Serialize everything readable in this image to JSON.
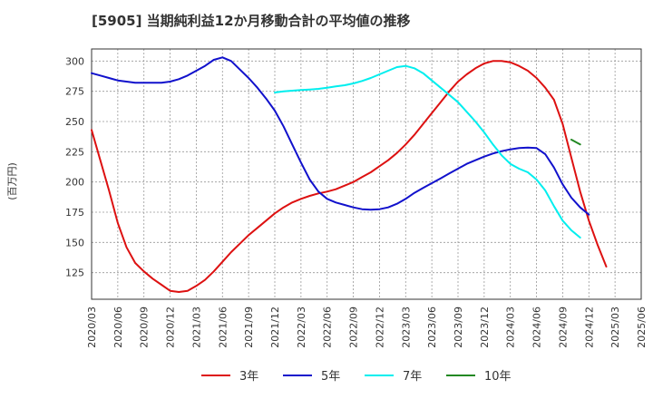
{
  "chart_data": {
    "type": "line",
    "title": "[5905]  当期純利益12か月移動合計の平均値の推移",
    "ylabel": "(百万円)",
    "xlabel": "",
    "ylim": [
      103,
      310
    ],
    "yticks": [
      125,
      150,
      175,
      200,
      225,
      250,
      275,
      300
    ],
    "x_categories": [
      "2020/03",
      "2020/06",
      "2020/09",
      "2020/12",
      "2021/03",
      "2021/06",
      "2021/09",
      "2021/12",
      "2022/03",
      "2022/06",
      "2022/09",
      "2022/12",
      "2023/03",
      "2023/06",
      "2023/09",
      "2023/12",
      "2024/03",
      "2024/06",
      "2024/09",
      "2024/12",
      "2025/03",
      "2025/06"
    ],
    "grid": true,
    "legend_position": "bottom",
    "series": [
      {
        "name": "3年",
        "color": "#dd1111",
        "points": [
          [
            "2020/03",
            243
          ],
          [
            "2020/04",
            218
          ],
          [
            "2020/05",
            193
          ],
          [
            "2020/06",
            166
          ],
          [
            "2020/07",
            146
          ],
          [
            "2020/08",
            133
          ],
          [
            "2020/09",
            126
          ],
          [
            "2020/10",
            120
          ],
          [
            "2020/11",
            115
          ],
          [
            "2020/12",
            110
          ],
          [
            "2021/01",
            109
          ],
          [
            "2021/02",
            110
          ],
          [
            "2021/03",
            114
          ],
          [
            "2021/04",
            119
          ],
          [
            "2021/05",
            126
          ],
          [
            "2021/06",
            134
          ],
          [
            "2021/07",
            142
          ],
          [
            "2021/08",
            149
          ],
          [
            "2021/09",
            156
          ],
          [
            "2021/10",
            162
          ],
          [
            "2021/11",
            168
          ],
          [
            "2021/12",
            174
          ],
          [
            "2022/01",
            179
          ],
          [
            "2022/02",
            183
          ],
          [
            "2022/03",
            186
          ],
          [
            "2022/04",
            188.5
          ],
          [
            "2022/05",
            190.5
          ],
          [
            "2022/06",
            192
          ],
          [
            "2022/07",
            194
          ],
          [
            "2022/08",
            197
          ],
          [
            "2022/09",
            200
          ],
          [
            "2022/10",
            204
          ],
          [
            "2022/11",
            208
          ],
          [
            "2022/12",
            213
          ],
          [
            "2023/01",
            218
          ],
          [
            "2023/02",
            224
          ],
          [
            "2023/03",
            231
          ],
          [
            "2023/04",
            239
          ],
          [
            "2023/05",
            248
          ],
          [
            "2023/06",
            257
          ],
          [
            "2023/07",
            266
          ],
          [
            "2023/08",
            275
          ],
          [
            "2023/09",
            283
          ],
          [
            "2023/10",
            289
          ],
          [
            "2023/11",
            294
          ],
          [
            "2023/12",
            298
          ],
          [
            "2024/01",
            300
          ],
          [
            "2024/02",
            300
          ],
          [
            "2024/03",
            299
          ],
          [
            "2024/04",
            296
          ],
          [
            "2024/05",
            292
          ],
          [
            "2024/06",
            286
          ],
          [
            "2024/07",
            278
          ],
          [
            "2024/08",
            268
          ],
          [
            "2024/09",
            248
          ],
          [
            "2024/10",
            220
          ],
          [
            "2024/11",
            192
          ],
          [
            "2024/12",
            168
          ],
          [
            "2025/01",
            148
          ],
          [
            "2025/02",
            130
          ]
        ]
      },
      {
        "name": "5年",
        "color": "#1111cc",
        "points": [
          [
            "2020/03",
            290
          ],
          [
            "2020/04",
            288
          ],
          [
            "2020/05",
            286
          ],
          [
            "2020/06",
            284
          ],
          [
            "2020/07",
            283
          ],
          [
            "2020/08",
            282
          ],
          [
            "2020/09",
            282
          ],
          [
            "2020/10",
            282
          ],
          [
            "2020/11",
            282
          ],
          [
            "2020/12",
            283
          ],
          [
            "2021/01",
            285
          ],
          [
            "2021/02",
            288
          ],
          [
            "2021/03",
            292
          ],
          [
            "2021/04",
            296
          ],
          [
            "2021/05",
            301
          ],
          [
            "2021/06",
            303
          ],
          [
            "2021/07",
            300
          ],
          [
            "2021/08",
            293
          ],
          [
            "2021/09",
            286
          ],
          [
            "2021/10",
            278
          ],
          [
            "2021/11",
            269
          ],
          [
            "2021/12",
            259
          ],
          [
            "2022/01",
            246
          ],
          [
            "2022/02",
            231
          ],
          [
            "2022/03",
            216
          ],
          [
            "2022/04",
            202
          ],
          [
            "2022/05",
            192
          ],
          [
            "2022/06",
            186
          ],
          [
            "2022/07",
            183
          ],
          [
            "2022/08",
            181
          ],
          [
            "2022/09",
            179
          ],
          [
            "2022/10",
            177.5
          ],
          [
            "2022/11",
            177
          ],
          [
            "2022/12",
            177.5
          ],
          [
            "2023/01",
            179
          ],
          [
            "2023/02",
            182
          ],
          [
            "2023/03",
            186
          ],
          [
            "2023/04",
            191
          ],
          [
            "2023/05",
            195
          ],
          [
            "2023/06",
            199
          ],
          [
            "2023/07",
            203
          ],
          [
            "2023/08",
            207
          ],
          [
            "2023/09",
            211
          ],
          [
            "2023/10",
            215
          ],
          [
            "2023/11",
            218
          ],
          [
            "2023/12",
            221
          ],
          [
            "2024/01",
            223.5
          ],
          [
            "2024/02",
            225.5
          ],
          [
            "2024/03",
            227
          ],
          [
            "2024/04",
            228
          ],
          [
            "2024/05",
            228.5
          ],
          [
            "2024/06",
            228
          ],
          [
            "2024/07",
            223
          ],
          [
            "2024/08",
            212
          ],
          [
            "2024/09",
            198
          ],
          [
            "2024/10",
            187
          ],
          [
            "2024/11",
            179
          ],
          [
            "2024/12",
            173
          ]
        ]
      },
      {
        "name": "7年",
        "color": "#00eeee",
        "points": [
          [
            "2021/12",
            274
          ],
          [
            "2022/01",
            275
          ],
          [
            "2022/02",
            275.5
          ],
          [
            "2022/03",
            276
          ],
          [
            "2022/04",
            276.5
          ],
          [
            "2022/05",
            277
          ],
          [
            "2022/06",
            278
          ],
          [
            "2022/07",
            279
          ],
          [
            "2022/08",
            280
          ],
          [
            "2022/09",
            281.5
          ],
          [
            "2022/10",
            283.5
          ],
          [
            "2022/11",
            286
          ],
          [
            "2022/12",
            289
          ],
          [
            "2023/01",
            292
          ],
          [
            "2023/02",
            295
          ],
          [
            "2023/03",
            296
          ],
          [
            "2023/04",
            294
          ],
          [
            "2023/05",
            290
          ],
          [
            "2023/06",
            284
          ],
          [
            "2023/07",
            278
          ],
          [
            "2023/08",
            272
          ],
          [
            "2023/09",
            266
          ],
          [
            "2023/10",
            258
          ],
          [
            "2023/11",
            250
          ],
          [
            "2023/12",
            241
          ],
          [
            "2024/01",
            231
          ],
          [
            "2024/02",
            222
          ],
          [
            "2024/03",
            215
          ],
          [
            "2024/04",
            211
          ],
          [
            "2024/05",
            208
          ],
          [
            "2024/06",
            202
          ],
          [
            "2024/07",
            193
          ],
          [
            "2024/08",
            180
          ],
          [
            "2024/09",
            168
          ],
          [
            "2024/10",
            160
          ],
          [
            "2024/11",
            154
          ]
        ]
      },
      {
        "name": "10年",
        "color": "#228822",
        "points": [
          [
            "2024/10",
            235
          ],
          [
            "2024/11",
            231
          ]
        ]
      }
    ]
  }
}
